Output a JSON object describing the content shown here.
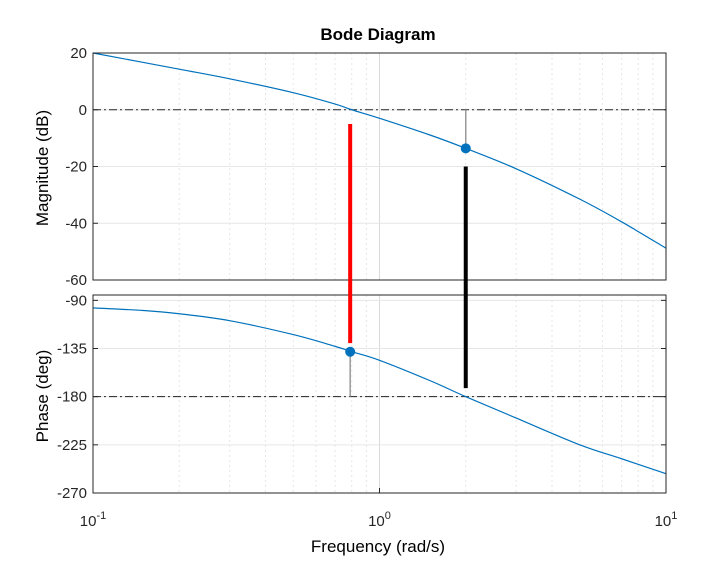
{
  "chart_data": {
    "type": "line",
    "title": "Bode Diagram",
    "xlabel": "Frequency  (rad/s)",
    "x_scale": "log",
    "xlim": [
      0.1,
      10
    ],
    "x_ticks": [
      {
        "value": 0.1,
        "base": "10",
        "exp": "-1"
      },
      {
        "value": 1,
        "base": "10",
        "exp": "0"
      },
      {
        "value": 10,
        "base": "10",
        "exp": "1"
      }
    ],
    "grid": true,
    "magnitude": {
      "ylabel": "Magnitude (dB)",
      "ylim": [
        -60,
        20
      ],
      "y_ticks": [
        "20",
        "0",
        "-20",
        "-40",
        "-60"
      ],
      "y_tick_values": [
        20,
        0,
        -20,
        -40,
        -60
      ],
      "reference_line": 0,
      "series": {
        "name": "magnitude",
        "x": [
          0.1,
          0.2,
          0.3,
          0.5,
          0.7,
          0.8,
          1.0,
          1.5,
          2.0,
          3.0,
          5.0,
          7.0,
          10.0
        ],
        "y": [
          20.0,
          14.3,
          10.9,
          6.0,
          2.0,
          0.0,
          -3.0,
          -8.9,
          -13.6,
          -20.8,
          -31.5,
          -39.5,
          -48.8
        ]
      },
      "marker": {
        "x": 2.0,
        "y": -13.6,
        "label": "gain margin"
      }
    },
    "phase": {
      "ylabel": "Phase (deg)",
      "ylim": [
        -270,
        -85
      ],
      "y_ticks": [
        "-90",
        "-135",
        "-180",
        "-225",
        "-270"
      ],
      "y_tick_values": [
        -90,
        -135,
        -180,
        -225,
        -270
      ],
      "reference_line": -180,
      "series": {
        "name": "phase",
        "x": [
          0.1,
          0.15,
          0.2,
          0.3,
          0.5,
          0.7,
          0.8,
          1.0,
          1.5,
          2.0,
          3.0,
          5.0,
          7.0,
          10.0
        ],
        "y": [
          -97.0,
          -99.5,
          -102.5,
          -109.0,
          -122.0,
          -133.0,
          -138.0,
          -146.0,
          -165.0,
          -180.0,
          -200.0,
          -225.0,
          -238.0,
          -252.0
        ]
      },
      "marker": {
        "x": 0.79,
        "y": -138.0,
        "label": "phase margin"
      }
    },
    "margin_bars": [
      {
        "name": "phase-margin-bar",
        "x": 0.79,
        "color": "#ff0000"
      },
      {
        "name": "gain-margin-bar",
        "x": 2.0,
        "color": "#000000"
      }
    ],
    "colors": {
      "line": "#0072bd",
      "marker": "#0072bd",
      "reference": "#262626",
      "stem": "#999999",
      "grid": "#e6e6e6"
    }
  }
}
